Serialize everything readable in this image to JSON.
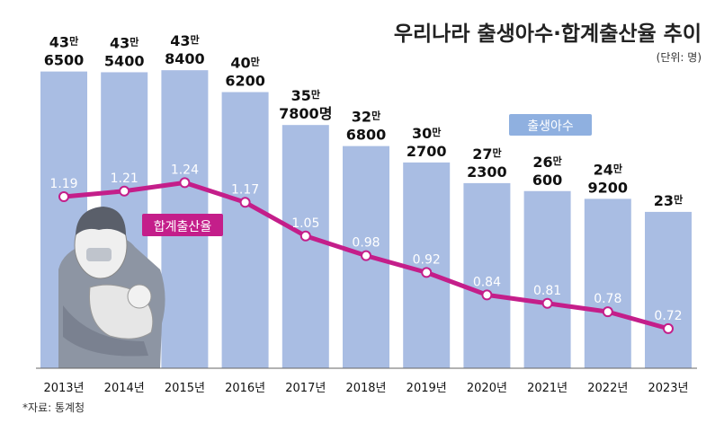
{
  "title": "우리나라 출생아수·합계출산율 추이",
  "unit_note": "(단위: 명)",
  "source": "*자료: 통계청",
  "colors": {
    "bars": "#a9bde3",
    "line": "#c41e8a",
    "tag_births": "#8fb0e0",
    "tag_rate": "#c41e8a"
  },
  "chart_data": {
    "type": "bar+line",
    "title": "우리나라 출생아수·합계출산율 추이",
    "categories": [
      "2013년",
      "2014년",
      "2015년",
      "2016년",
      "2017년",
      "2018년",
      "2019년",
      "2020년",
      "2021년",
      "2022년",
      "2023년"
    ],
    "series": [
      {
        "name": "출생아수",
        "type": "bar",
        "values": [
          436500,
          435400,
          438400,
          406200,
          357800,
          326800,
          302700,
          272300,
          260600,
          249200,
          230000
        ],
        "labels": [
          {
            "l1": "43",
            "man": "만",
            "l2": "6500"
          },
          {
            "l1": "43",
            "man": "만",
            "l2": "5400"
          },
          {
            "l1": "43",
            "man": "만",
            "l2": "8400"
          },
          {
            "l1": "40",
            "man": "만",
            "l2": "6200"
          },
          {
            "l1": "35",
            "man": "만",
            "l2": "7800명"
          },
          {
            "l1": "32",
            "man": "만",
            "l2": "6800"
          },
          {
            "l1": "30",
            "man": "만",
            "l2": "2700"
          },
          {
            "l1": "27",
            "man": "만",
            "l2": "2300"
          },
          {
            "l1": "26",
            "man": "만",
            "l2": "600"
          },
          {
            "l1": "24",
            "man": "만",
            "l2": "9200"
          },
          {
            "l1": "23",
            "man": "만",
            "l2": ""
          }
        ]
      },
      {
        "name": "합계출산율",
        "type": "line",
        "values": [
          1.19,
          1.21,
          1.24,
          1.17,
          1.05,
          0.98,
          0.92,
          0.84,
          0.81,
          0.78,
          0.72
        ],
        "labels": [
          "1.19",
          "1.21",
          "1.24",
          "1.17",
          "1.05",
          "0.98",
          "0.92",
          "0.84",
          "0.81",
          "0.78",
          "0.72"
        ]
      }
    ],
    "grid": false,
    "legend": "inline tags"
  }
}
